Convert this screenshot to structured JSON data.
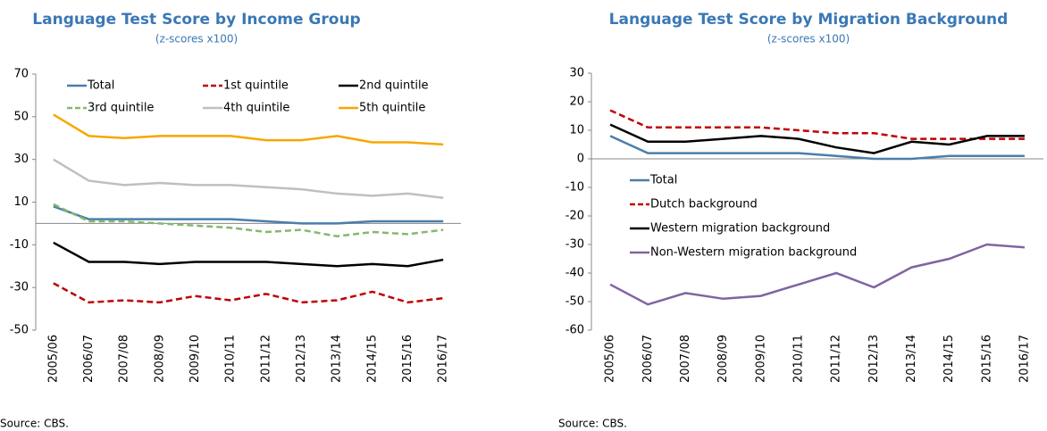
{
  "chart_data": [
    {
      "type": "line",
      "title": "Language Test Score by Income Group",
      "subtitle": "(z-scores x100)",
      "source": "Source: CBS.",
      "categories": [
        "2005/06",
        "2006/07",
        "2007/08",
        "2008/09",
        "2009/10",
        "2010/11",
        "2011/12",
        "2012/13",
        "2013/14",
        "2014/15",
        "2015/16",
        "2016/17"
      ],
      "ylim": [
        -50,
        70
      ],
      "yticks": [
        -50,
        -30,
        -10,
        10,
        30,
        50,
        70
      ],
      "legend": "top",
      "series": [
        {
          "name": "Total",
          "color": "#4a7eab",
          "dash": false,
          "values": [
            8,
            2,
            2,
            2,
            2,
            2,
            1,
            0,
            0,
            1,
            1,
            1
          ]
        },
        {
          "name": "1st quintile",
          "color": "#c00000",
          "dash": true,
          "values": [
            -28,
            -37,
            -36,
            -37,
            -34,
            -36,
            -33,
            -37,
            -36,
            -32,
            -37,
            -35
          ]
        },
        {
          "name": "2nd quintile",
          "color": "#000000",
          "dash": false,
          "values": [
            -9,
            -18,
            -18,
            -19,
            -18,
            -18,
            -18,
            -19,
            -20,
            -19,
            -20,
            -17
          ]
        },
        {
          "name": "3rd quintile",
          "color": "#86b86c",
          "dash": true,
          "values": [
            9,
            1,
            1,
            0,
            -1,
            -2,
            -4,
            -3,
            -6,
            -4,
            -5,
            -3
          ]
        },
        {
          "name": "4th quintile",
          "color": "#bfbfbf",
          "dash": false,
          "values": [
            30,
            20,
            18,
            19,
            18,
            18,
            17,
            16,
            14,
            13,
            14,
            12
          ]
        },
        {
          "name": "5th quintile",
          "color": "#f5a800",
          "dash": false,
          "values": [
            51,
            41,
            40,
            41,
            41,
            41,
            39,
            39,
            41,
            38,
            38,
            37
          ]
        }
      ]
    },
    {
      "type": "line",
      "title": "Language Test Score by Migration Background",
      "subtitle": "(z-scores x100)",
      "source": "Source: CBS.",
      "categories": [
        "2005/06",
        "2006/07",
        "2007/08",
        "2008/09",
        "2009/10",
        "2010/11",
        "2011/12",
        "2012/13",
        "2013/14",
        "2014/15",
        "2015/16",
        "2016/17"
      ],
      "ylim": [
        -60,
        30
      ],
      "yticks": [
        -60,
        -50,
        -40,
        -30,
        -20,
        -10,
        0,
        10,
        20,
        30
      ],
      "legend": "left",
      "series": [
        {
          "name": "Total",
          "color": "#4a7eab",
          "dash": false,
          "values": [
            8,
            2,
            2,
            2,
            2,
            2,
            1,
            0,
            0,
            1,
            1,
            1
          ]
        },
        {
          "name": "Dutch background",
          "color": "#c00000",
          "dash": true,
          "values": [
            17,
            11,
            11,
            11,
            11,
            10,
            9,
            9,
            7,
            7,
            7,
            7
          ]
        },
        {
          "name": "Western migration background",
          "color": "#000000",
          "dash": false,
          "values": [
            12,
            6,
            6,
            7,
            8,
            7,
            4,
            2,
            6,
            5,
            8,
            8
          ]
        },
        {
          "name": "Non-Western migration background",
          "color": "#8064a2",
          "dash": false,
          "values": [
            -44,
            -51,
            -47,
            -49,
            -48,
            -44,
            -40,
            -45,
            -38,
            -35,
            -30,
            -31
          ]
        }
      ]
    }
  ]
}
